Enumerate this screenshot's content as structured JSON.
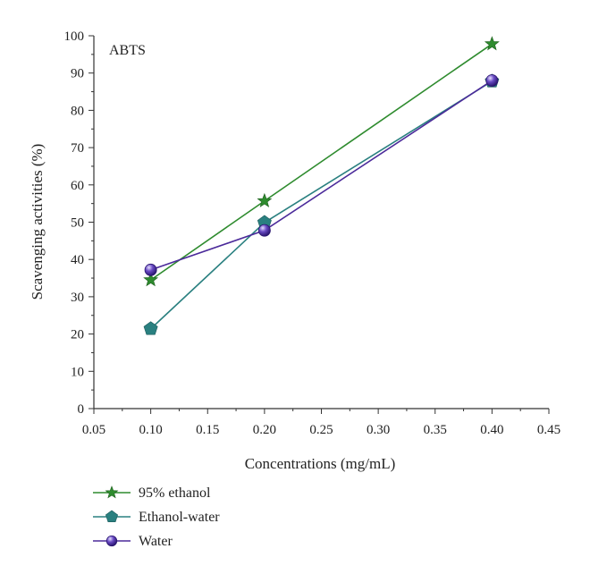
{
  "chart_data": {
    "type": "line",
    "annotation": "ABTS",
    "xlabel": "Concentrations (mg/mL)",
    "ylabel": "Scavenging activities (%)",
    "xlim": [
      0.05,
      0.45
    ],
    "ylim": [
      0,
      100
    ],
    "x_ticks": [
      "0.05",
      "0.10",
      "0.15",
      "0.20",
      "0.25",
      "0.30",
      "0.35",
      "0.40",
      "0.45"
    ],
    "y_ticks": [
      "0",
      "10",
      "20",
      "30",
      "40",
      "50",
      "60",
      "70",
      "80",
      "90",
      "100"
    ],
    "grid": false,
    "legend_position": "below",
    "series": [
      {
        "name": "95% ethanol",
        "marker": "star",
        "color": "#2e8b2e",
        "x": [
          0.1,
          0.2,
          0.4
        ],
        "y": [
          34.5,
          55.7,
          97.8
        ]
      },
      {
        "name": "Ethanol-water",
        "marker": "pentagon",
        "color": "#2a8080",
        "x": [
          0.1,
          0.2,
          0.4
        ],
        "y": [
          21.4,
          49.9,
          87.8
        ]
      },
      {
        "name": "Water",
        "marker": "sphere",
        "color": "#4b2a9a",
        "x": [
          0.1,
          0.2,
          0.4
        ],
        "y": [
          37.2,
          47.8,
          88.0
        ]
      }
    ]
  }
}
